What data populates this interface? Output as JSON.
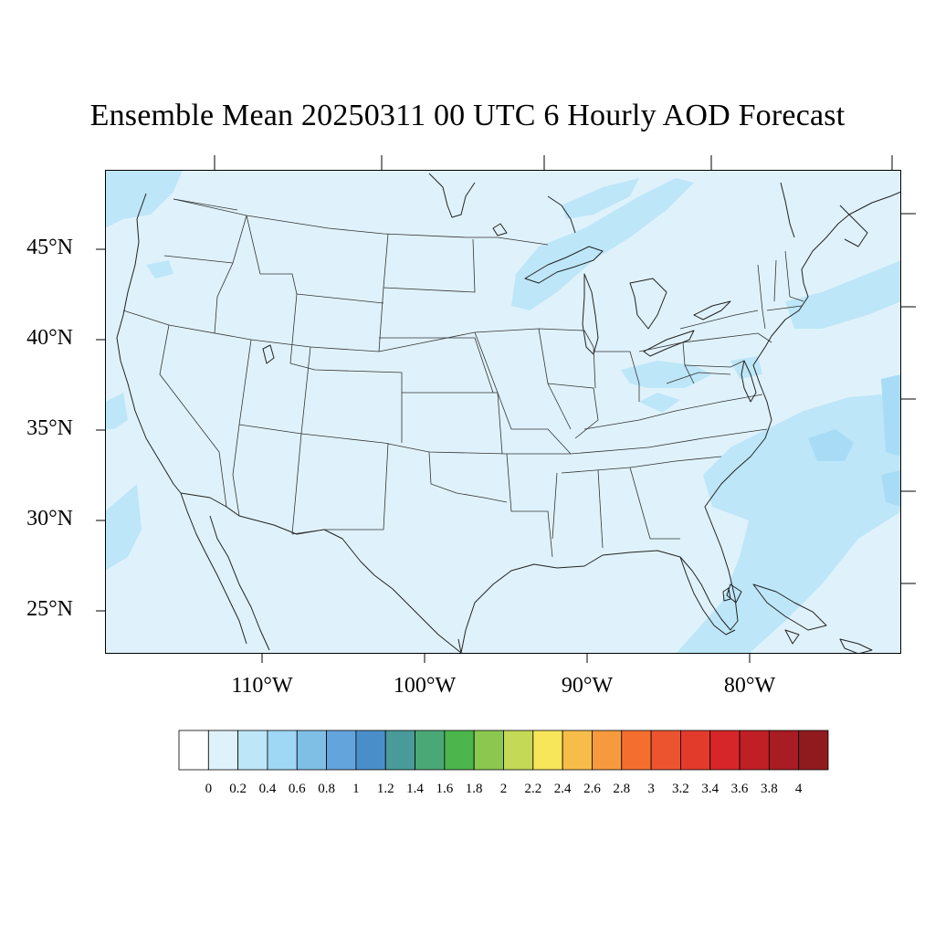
{
  "title": "Ensemble Mean 20250311 00 UTC 6 Hourly AOD Forecast",
  "lat_labels": [
    "45°N",
    "40°N",
    "35°N",
    "30°N",
    "25°N"
  ],
  "lon_labels": [
    "110°W",
    "100°W",
    "90°W",
    "80°W"
  ],
  "colorbar": {
    "labels": [
      "0",
      "0.2",
      "0.4",
      "0.6",
      "0.8",
      "1",
      "1.2",
      "1.4",
      "1.6",
      "1.8",
      "2",
      "2.2",
      "2.4",
      "2.6",
      "2.8",
      "3",
      "3.2",
      "3.4",
      "3.6",
      "3.8",
      "4"
    ],
    "colors": [
      "#ffffff",
      "#dff2fb",
      "#bde6f8",
      "#9ed8f4",
      "#7fbfe6",
      "#63a4dd",
      "#4a8ec9",
      "#4a9a9a",
      "#4aa877",
      "#4cb54c",
      "#8cc850",
      "#c4d956",
      "#f7e55a",
      "#f7bd4a",
      "#f79a3e",
      "#f46f2f",
      "#ec5430",
      "#e23b2b",
      "#d6262a",
      "#c01f26",
      "#a81c24",
      "#8f1b1e"
    ]
  },
  "colors": {
    "background_aod": "#dff2fb",
    "elevated_aod": "#bde6f8",
    "land_outline": "#222222"
  }
}
